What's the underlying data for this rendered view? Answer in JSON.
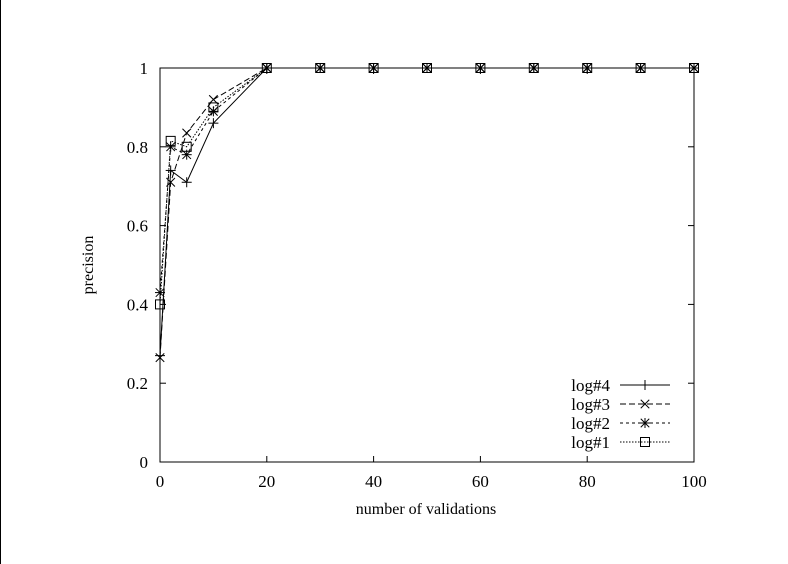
{
  "chart_data": {
    "type": "line",
    "title": "",
    "xlabel": "number of validations",
    "ylabel": "precision",
    "xlim": [
      0,
      100
    ],
    "ylim": [
      0,
      1
    ],
    "xticks": [
      "0",
      "20",
      "40",
      "60",
      "80",
      "100"
    ],
    "yticks": [
      "0",
      "0.2",
      "0.4",
      "0.6",
      "0.8",
      "1"
    ],
    "grid": false,
    "legend_position": "lower right",
    "x": [
      0,
      2,
      5,
      10,
      20,
      30,
      40,
      50,
      60,
      70,
      80,
      90,
      100
    ],
    "series": [
      {
        "name": "log#4",
        "marker": "plus",
        "linestyle": "solid",
        "values": [
          0.27,
          0.74,
          0.71,
          0.86,
          1,
          1,
          1,
          1,
          1,
          1,
          1,
          1,
          1
        ]
      },
      {
        "name": "log#3",
        "marker": "cross",
        "linestyle": "dashed",
        "values": [
          0.265,
          0.71,
          0.835,
          0.92,
          1,
          1,
          1,
          1,
          1,
          1,
          1,
          1,
          1
        ]
      },
      {
        "name": "log#2",
        "marker": "star",
        "linestyle": "short-dashed",
        "values": [
          0.43,
          0.8,
          0.78,
          0.89,
          1,
          1,
          1,
          1,
          1,
          1,
          1,
          1,
          1
        ]
      },
      {
        "name": "log#1",
        "marker": "square",
        "linestyle": "dotted",
        "values": [
          0.4,
          0.815,
          0.8,
          0.9,
          1,
          1,
          1,
          1,
          1,
          1,
          1,
          1,
          1
        ]
      }
    ]
  },
  "axis": {
    "xlabel": "number of validations",
    "ylabel": "precision"
  },
  "legend": {
    "items": [
      "log#4",
      "log#3",
      "log#2",
      "log#1"
    ]
  }
}
